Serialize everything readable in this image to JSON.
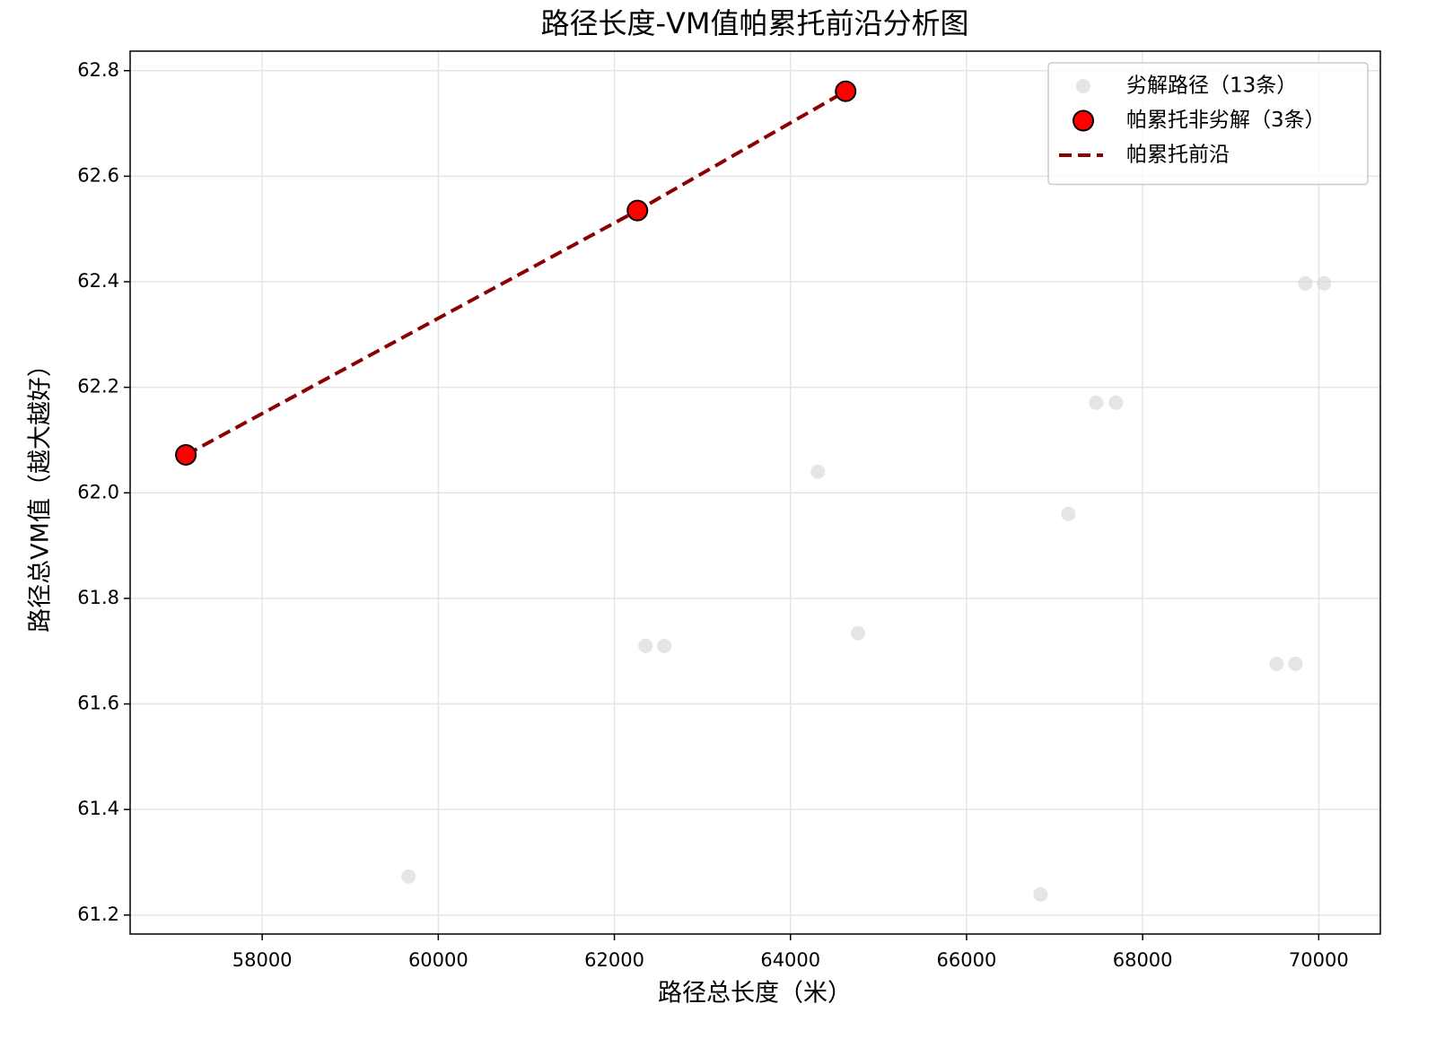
{
  "chart_data": {
    "type": "scatter",
    "title": "路径长度-VM值帕累托前沿分析图",
    "xlabel": "路径总长度（米）",
    "ylabel": "路径总VM值（越大越好）",
    "xlim": [
      56500,
      70700
    ],
    "ylim": [
      61.164,
      62.837
    ],
    "xticks": [
      58000,
      60000,
      62000,
      64000,
      66000,
      68000,
      70000
    ],
    "yticks": [
      61.2,
      61.4,
      61.6,
      61.8,
      {
        "value": 62,
        "label": "62.0"
      },
      62.2,
      62.4,
      62.6,
      62.8
    ],
    "grid": true,
    "legend": "upper right",
    "series": [
      {
        "name": "劣解路径（13条）",
        "type": "scatter",
        "color": "#d3d3d3",
        "x": [
          59662,
          62354,
          62568,
          64311,
          64768,
          66840,
          67156,
          67472,
          67696,
          69521,
          69735,
          69847,
          70061
        ],
        "values": [
          61.273,
          61.71,
          61.71,
          62.04,
          61.734,
          61.239,
          61.96,
          62.171,
          62.171,
          61.676,
          61.676,
          62.397,
          62.397
        ]
      },
      {
        "name": "帕累托非劣解（3条）",
        "type": "scatter",
        "color": "#ff0000",
        "x": [
          57133,
          62262,
          64627
        ],
        "values": [
          62.072,
          62.535,
          62.761
        ]
      },
      {
        "name": "帕累托前沿",
        "type": "line",
        "color": "#8b0000",
        "x": [
          57133,
          62262,
          64627
        ],
        "values": [
          62.072,
          62.535,
          62.761
        ]
      }
    ]
  }
}
